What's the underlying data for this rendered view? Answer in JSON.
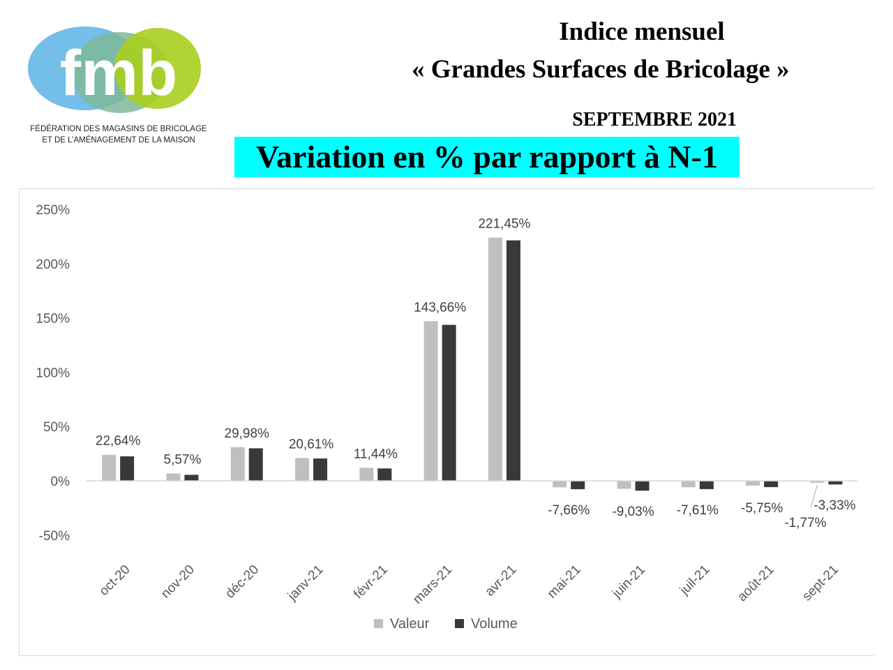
{
  "header": {
    "logo_text": "fmb",
    "logo_caption_line1": "FÉDÉRATION DES MAGASINS DE BRICOLAGE",
    "logo_caption_line2": "ET DE L’AMÉNAGEMENT DE LA MAISON",
    "title_line1": "Indice mensuel",
    "title_line2": "« Grandes Surfaces de Bricolage »",
    "subtitle": "SEPTEMBRE 2021",
    "banner": "Variation en % par rapport à N-1"
  },
  "colors": {
    "banner": "#00ffff",
    "valeur": "#bfbfbf",
    "volume": "#3a3838",
    "logo_blue": "#5ab4e5",
    "logo_teal": "#7fb89a",
    "logo_green": "#a8cf1e"
  },
  "chart_data": {
    "type": "bar",
    "categories": [
      "oct-20",
      "nov-20",
      "déc-20",
      "janv-21",
      "févr-21",
      "mars-21",
      "avr-21",
      "mai-21",
      "juin-21",
      "juil-21",
      "août-21",
      "sept-21"
    ],
    "series": [
      {
        "name": "Valeur",
        "values": [
          24,
          6.8,
          31,
          21,
          12,
          147,
          224,
          -6,
          -7.3,
          -5.9,
          -4.4,
          -1.77
        ]
      },
      {
        "name": "Volume",
        "values": [
          22.64,
          5.57,
          29.98,
          20.61,
          11.44,
          143.66,
          221.45,
          -7.66,
          -9.03,
          -7.61,
          -5.75,
          -3.33
        ]
      }
    ],
    "data_labels": [
      "22,64%",
      "5,57%",
      "29,98%",
      "20,61%",
      "11,44%",
      "143,66%",
      "221,45%",
      "-7,66%",
      "-9,03%",
      "-7,61%",
      "-5,75%",
      "-3,33%"
    ],
    "extra_label": "-1,77%",
    "y_ticks": [
      -50,
      0,
      50,
      100,
      150,
      200,
      250
    ],
    "y_tick_labels": [
      "-50%",
      "0%",
      "50%",
      "100%",
      "150%",
      "200%",
      "250%"
    ],
    "ylim": [
      -50,
      250
    ],
    "grid": false,
    "legend_position": "bottom"
  }
}
